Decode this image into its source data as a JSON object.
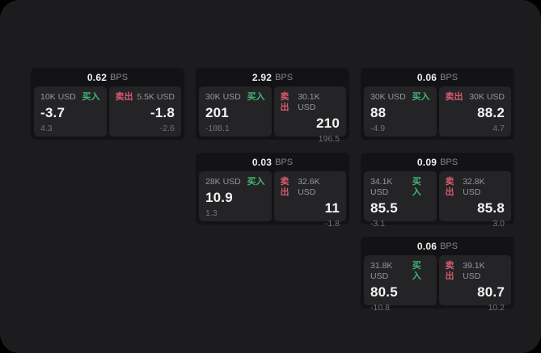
{
  "labels": {
    "bps_unit": "BPS",
    "buy": "买入",
    "sell": "卖出"
  },
  "colors": {
    "panel_background": "#1c1c1e",
    "card_background": "#131315",
    "tile_background": "#242427",
    "buy_green": "#42b673",
    "sell_red": "#d45b6e"
  },
  "cards": [
    {
      "bps": "0.62",
      "buy": {
        "amount": "10K USD",
        "value": "-3.7",
        "delta": "4.3"
      },
      "sell": {
        "amount": "5.5K USD",
        "value": "-1.8",
        "delta": "-2.6"
      }
    },
    {
      "bps": "2.92",
      "buy": {
        "amount": "30K USD",
        "value": "201",
        "delta": "-188.1"
      },
      "sell": {
        "amount": "30.1K USD",
        "value": "210",
        "delta": "196.5"
      }
    },
    {
      "bps": "0.06",
      "buy": {
        "amount": "30K USD",
        "value": "88",
        "delta": "-4.9"
      },
      "sell": {
        "amount": "30K USD",
        "value": "88.2",
        "delta": "4.7"
      }
    },
    {
      "bps": "0.03",
      "buy": {
        "amount": "28K USD",
        "value": "10.9",
        "delta": "1.3"
      },
      "sell": {
        "amount": "32.6K USD",
        "value": "11",
        "delta": "-1.8"
      }
    },
    {
      "bps": "0.09",
      "buy": {
        "amount": "34.1K USD",
        "value": "85.5",
        "delta": "-3.1"
      },
      "sell": {
        "amount": "32.8K USD",
        "value": "85.8",
        "delta": "3.0"
      }
    },
    {
      "bps": "0.06",
      "buy": {
        "amount": "31.8K USD",
        "value": "80.5",
        "delta": "-10.8"
      },
      "sell": {
        "amount": "39.1K USD",
        "value": "80.7",
        "delta": "10.2"
      }
    }
  ]
}
